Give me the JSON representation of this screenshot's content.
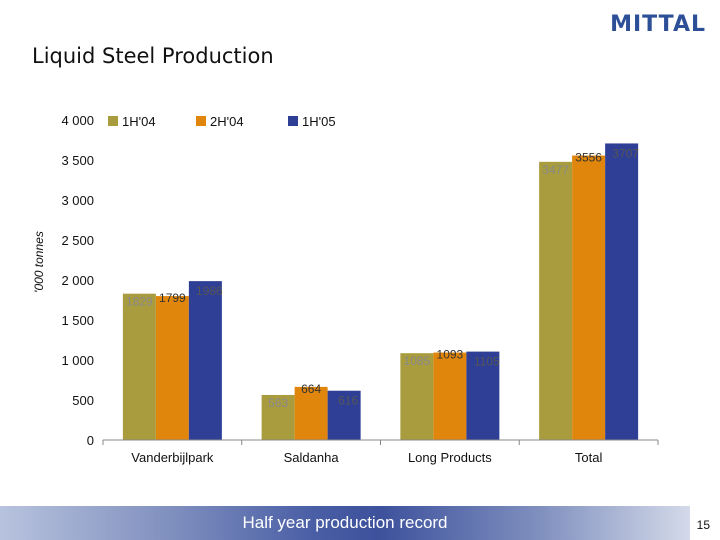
{
  "logo": "MITTAL",
  "title": "Liquid Steel Production",
  "footer": "Half year production record",
  "page_number": "15",
  "chart_data": {
    "type": "bar",
    "title": "Liquid Steel Production",
    "ylabel": "'000 tonnes",
    "xlabel": "",
    "ylim": [
      0,
      4000
    ],
    "yticks": [
      {
        "value": 0,
        "label": "0"
      },
      {
        "value": 500,
        "label": "500"
      },
      {
        "value": 1000,
        "label": "1 000"
      },
      {
        "value": 1500,
        "label": "1 500"
      },
      {
        "value": 2000,
        "label": "2 000"
      },
      {
        "value": 2500,
        "label": "2 500"
      },
      {
        "value": 3000,
        "label": "3 000"
      },
      {
        "value": 3500,
        "label": "3 500"
      },
      {
        "value": 4000,
        "label": "4 000"
      }
    ],
    "categories": [
      "Vanderbijlpark",
      "Saldanha",
      "Long Products",
      "Total"
    ],
    "series": [
      {
        "name": "1H'04",
        "color": "#a89c3e",
        "values": [
          1829,
          563,
          1085,
          3477
        ]
      },
      {
        "name": "2H'04",
        "color": "#e0860c",
        "values": [
          1799,
          664,
          1093,
          3556
        ]
      },
      {
        "name": "1H'05",
        "color": "#2f3f96",
        "values": [
          1986,
          616,
          1105,
          3707
        ]
      }
    ],
    "legend_position": "top",
    "grid": false
  }
}
